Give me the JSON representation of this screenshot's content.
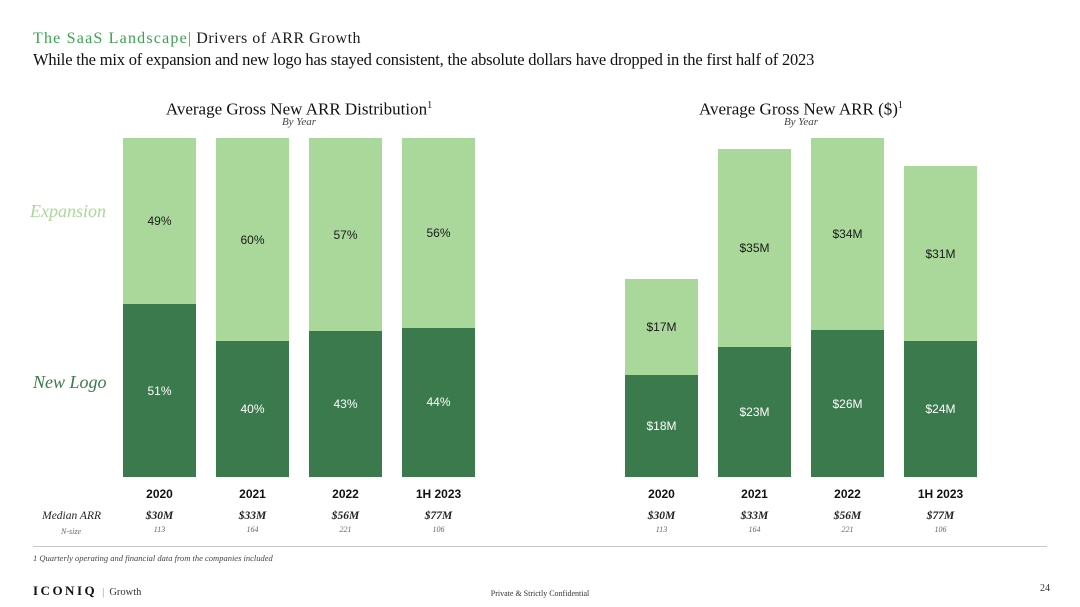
{
  "colors": {
    "title_green": "#3DA24F",
    "light_green": "#A9D89A",
    "dark_green": "#3A7A4C"
  },
  "header": {
    "title_prefix": "The SaaS Landscape|",
    "title_main": "Drivers of ARR Growth",
    "subtitle": "While the mix of expansion and new logo has stayed consistent, the absolute dollars have dropped in the first half of 2023"
  },
  "series_labels": {
    "expansion": "Expansion",
    "new_logo": "New Logo"
  },
  "chart_data": [
    {
      "type": "bar",
      "stacked": true,
      "title": "Average Gross New ARR Distribution",
      "superscript": "1",
      "subtitle": "By Year",
      "categories": [
        "2020",
        "2021",
        "2022",
        "1H 2023"
      ],
      "unit": "percent",
      "ylim": [
        0,
        100
      ],
      "legend_position": "left-margin",
      "grid": false,
      "series": [
        {
          "name": "Expansion",
          "position": "top",
          "values": [
            49,
            60,
            57,
            56
          ],
          "labels": [
            "49%",
            "60%",
            "57%",
            "56%"
          ]
        },
        {
          "name": "New Logo",
          "position": "bottom",
          "values": [
            51,
            40,
            43,
            44
          ],
          "labels": [
            "51%",
            "40%",
            "43%",
            "44%"
          ]
        }
      ]
    },
    {
      "type": "bar",
      "stacked": true,
      "title": "Average Gross New ARR ($)",
      "superscript": "1",
      "subtitle": "By Year",
      "categories": [
        "2020",
        "2021",
        "2022",
        "1H 2023"
      ],
      "unit": "USD millions",
      "grid": false,
      "series": [
        {
          "name": "Expansion",
          "position": "top",
          "values": [
            17,
            35,
            34,
            31
          ],
          "labels": [
            "$17M",
            "$35M",
            "$34M",
            "$31M"
          ]
        },
        {
          "name": "New Logo",
          "position": "bottom",
          "values": [
            18,
            23,
            26,
            24
          ],
          "labels": [
            "$18M",
            "$23M",
            "$26M",
            "$24M"
          ]
        }
      ]
    }
  ],
  "table": {
    "median_arr_label": "Median ARR",
    "n_size_label": "N-size",
    "median_arr": [
      "$30M",
      "$33M",
      "$56M",
      "$77M"
    ],
    "n_size": [
      "113",
      "164",
      "221",
      "106"
    ]
  },
  "footnote": "1 Quarterly operating and financial data from the companies included",
  "footer": {
    "brand": "ICONIQ",
    "brand_separator": "|",
    "brand_sub": "Growth",
    "confidential": "Private & Strictly Confidential",
    "page_number": "24"
  }
}
